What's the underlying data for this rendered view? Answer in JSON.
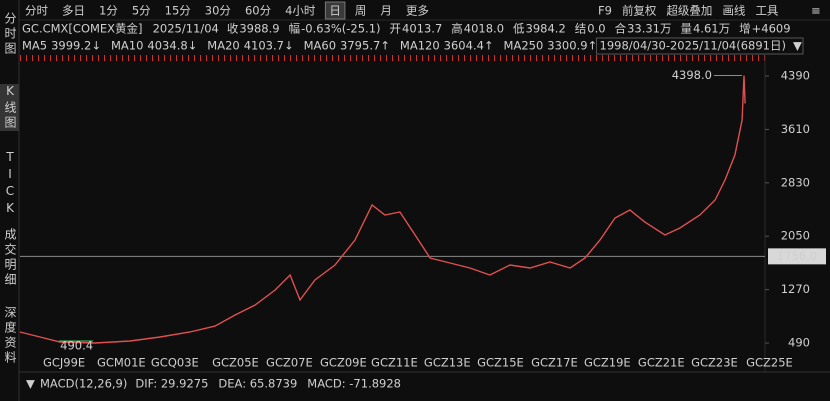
{
  "toolbar": {
    "periods": [
      "分时",
      "多日",
      "1分",
      "5分",
      "15分",
      "30分",
      "60分",
      "4小时",
      "日",
      "周",
      "月",
      "更多"
    ],
    "tools": [
      "F9",
      "前复权",
      "超级叠加",
      "画线",
      "工具"
    ]
  },
  "quote": {
    "symbol": "GC.CMX[COMEX黄金]",
    "date": "2025/11/04",
    "items": [
      {
        "label": "收",
        "value": "3988.9",
        "color": "#3fcf6a"
      },
      {
        "label": "幅",
        "value": "-0.63%(-25.1)",
        "color": "#3fcf6a"
      },
      {
        "label": "开",
        "value": "4013.7",
        "color": "#3fcf6a"
      },
      {
        "label": "高",
        "value": "4018.0",
        "color": "#ff4a4a"
      },
      {
        "label": "低",
        "value": "3984.2",
        "color": "#3fcf6a"
      },
      {
        "label": "结",
        "value": "0.0",
        "color": "#3fcf6a"
      },
      {
        "label": "合",
        "value": "33.31万",
        "color": "#e6e6e6"
      },
      {
        "label": "量",
        "value": "4.61万",
        "color": "#e6e6e6"
      },
      {
        "label": "增",
        "value": "+4609",
        "color": "#ff4a4a"
      }
    ]
  },
  "ma": [
    {
      "label": "MA5",
      "value": "3999.2↓",
      "color": "#ff8a8a"
    },
    {
      "label": "MA10",
      "value": "4034.8↓",
      "color": "#e8d84a"
    },
    {
      "label": "MA20",
      "value": "4103.7↓",
      "color": "#f06ad8"
    },
    {
      "label": "MA60",
      "value": "3795.7↑",
      "color": "#4fd17a"
    },
    {
      "label": "MA120",
      "value": "3604.4↑",
      "color": "#a8cbe6"
    },
    {
      "label": "MA250",
      "value": "3300.9↑",
      "color": "#4f9bff"
    }
  ],
  "range": "1998/04/30-2025/11/04(6891日)",
  "sidebar": [
    "分时图",
    "K线图",
    "TICK",
    "成交明细",
    "深度资料"
  ],
  "chart_data": {
    "type": "line",
    "color": "#e05050",
    "x": [
      1998.7,
      1999.45,
      2000.2,
      2001.51,
      2002.82,
      2003.94,
      2005.06,
      2006.0,
      2006.75,
      2007.5,
      2008.25,
      2008.81,
      2009.18,
      2009.74,
      2010.49,
      2011.24,
      2011.88,
      2012.36,
      2012.92,
      2013.49,
      2014.05,
      2014.8,
      2015.54,
      2016.29,
      2017.04,
      2017.79,
      2018.54,
      2019.29,
      2019.85,
      2020.41,
      2020.97,
      2021.53,
      2022.09,
      2022.84,
      2023.4,
      2024.15,
      2024.72,
      2025.09,
      2025.46,
      2025.73,
      2025.8,
      2025.84
    ],
    "values": [
      651,
      578,
      505,
      490.4,
      520,
      578,
      651,
      738,
      899,
      1045,
      1264,
      1483,
      1118,
      1410,
      1629,
      1995,
      2506,
      2360,
      2404,
      2068,
      1732,
      1659,
      1586,
      1483,
      1629,
      1586,
      1673,
      1586,
      1732,
      1995,
      2316,
      2433,
      2257,
      2068,
      2170,
      2360,
      2579,
      2871,
      3236,
      3747,
      4398,
      3988.9
    ],
    "xlim": [
      1998.7,
      2026.1
    ],
    "xticks": [
      {
        "value": 1999.56,
        "label": "GCJ99E"
      },
      {
        "value": 2001.58,
        "label": "GCM01E"
      },
      {
        "value": 2003.6,
        "label": "GCQ03E"
      },
      {
        "value": 2005.89,
        "label": "GCZ05E"
      },
      {
        "value": 2007.91,
        "label": "GCZ07E"
      },
      {
        "value": 2009.93,
        "label": "GCZ09E"
      },
      {
        "value": 2011.84,
        "label": "GCZ11E"
      },
      {
        "value": 2013.82,
        "label": "GCZ13E"
      },
      {
        "value": 2015.81,
        "label": "GCZ15E"
      },
      {
        "value": 2017.83,
        "label": "GCZ17E"
      },
      {
        "value": 2019.81,
        "label": "GCZ19E"
      },
      {
        "value": 2021.83,
        "label": "GCZ21E"
      },
      {
        "value": 2023.82,
        "label": "GCZ23E"
      },
      {
        "value": 2025.88,
        "label": "GCZ25E"
      }
    ],
    "ylim": [
      359,
      4697
    ],
    "yticks": [
      490,
      1270,
      2050,
      2830,
      3610,
      4390
    ],
    "grid": false,
    "hline": {
      "value": 1756,
      "label": "1756.0"
    },
    "annotations": [
      {
        "x": 2025.8,
        "y": 4398,
        "label": "4398.0",
        "color": "#ff5a5a"
      },
      {
        "x": 2001.51,
        "y": 490.4,
        "label": "490.4",
        "color": "#3fcf6a"
      }
    ]
  },
  "macd": {
    "title": "MACD(12,26,9)",
    "items": [
      {
        "text": "DIF: 29.9275",
        "color": "#e6e6e6"
      },
      {
        "text": "DEA: 65.8739",
        "color": "#f0a030"
      },
      {
        "text": "MACD: -71.8928",
        "color": "#a08cff"
      }
    ]
  }
}
